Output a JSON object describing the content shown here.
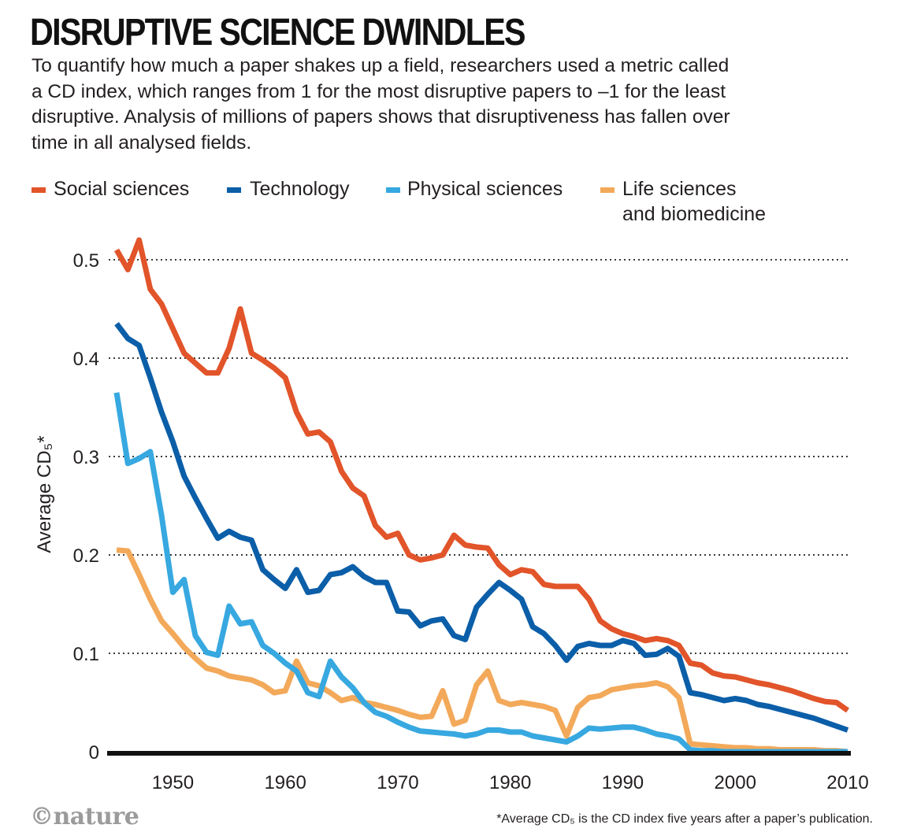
{
  "title": "DISRUPTIVE SCIENCE DWINDLES",
  "subtitle": "To quantify how much a paper shakes up a field, researchers used a metric called a CD index, which ranges from 1 for the most disruptive papers to –1 for the least disruptive. Analysis of millions of papers shows that disruptiveness has fallen over time in all analysed fields.",
  "logo_text": "©nature",
  "footnote": "*Average CD₅ is the CD index five years after a paper’s publication.",
  "chart_data": {
    "type": "line",
    "ylabel": "Average CD₅*",
    "xlabel": "",
    "xlim": [
      1944,
      2012
    ],
    "ylim": [
      0,
      0.5
    ],
    "xticks": [
      1950,
      1960,
      1970,
      1980,
      1990,
      2000,
      2010
    ],
    "yticks": [
      0,
      0.1,
      0.2,
      0.3,
      0.4,
      0.5
    ],
    "ytick_labels": [
      "0",
      "0.1",
      "0.2",
      "0.3",
      "0.4",
      "0.5"
    ],
    "grid": "horizontal dotted",
    "legend": "top",
    "x": [
      1945,
      1946,
      1947,
      1948,
      1949,
      1950,
      1951,
      1952,
      1953,
      1954,
      1955,
      1956,
      1957,
      1958,
      1959,
      1960,
      1961,
      1962,
      1963,
      1964,
      1965,
      1966,
      1967,
      1968,
      1969,
      1970,
      1971,
      1972,
      1973,
      1974,
      1975,
      1976,
      1977,
      1978,
      1979,
      1980,
      1981,
      1982,
      1983,
      1984,
      1985,
      1986,
      1987,
      1988,
      1989,
      1990,
      1991,
      1992,
      1993,
      1994,
      1995,
      1996,
      1997,
      1998,
      1999,
      2000,
      2001,
      2002,
      2003,
      2004,
      2005,
      2006,
      2007,
      2008,
      2009,
      2010
    ],
    "series": [
      {
        "name": "Social sciences",
        "color": "#e2542a",
        "values": [
          0.51,
          0.49,
          0.52,
          0.47,
          0.455,
          0.43,
          0.405,
          0.395,
          0.385,
          0.385,
          0.41,
          0.45,
          0.405,
          0.398,
          0.39,
          0.38,
          0.345,
          0.323,
          0.325,
          0.315,
          0.285,
          0.268,
          0.26,
          0.23,
          0.218,
          0.222,
          0.2,
          0.195,
          0.197,
          0.2,
          0.22,
          0.21,
          0.208,
          0.207,
          0.19,
          0.18,
          0.185,
          0.183,
          0.17,
          0.168,
          0.168,
          0.168,
          0.155,
          0.133,
          0.125,
          0.12,
          0.117,
          0.113,
          0.115,
          0.113,
          0.108,
          0.09,
          0.088,
          0.08,
          0.077,
          0.076,
          0.073,
          0.07,
          0.068,
          0.065,
          0.062,
          0.058,
          0.054,
          0.051,
          0.05,
          0.042
        ]
      },
      {
        "name": "Technology",
        "color": "#0b5ea8",
        "values": [
          0.435,
          0.42,
          0.413,
          0.38,
          0.345,
          0.315,
          0.28,
          0.258,
          0.237,
          0.217,
          0.224,
          0.218,
          0.215,
          0.185,
          0.175,
          0.166,
          0.185,
          0.162,
          0.164,
          0.18,
          0.182,
          0.188,
          0.178,
          0.172,
          0.172,
          0.143,
          0.142,
          0.128,
          0.133,
          0.135,
          0.118,
          0.114,
          0.147,
          0.16,
          0.172,
          0.164,
          0.155,
          0.127,
          0.12,
          0.108,
          0.093,
          0.107,
          0.11,
          0.108,
          0.108,
          0.113,
          0.11,
          0.098,
          0.099,
          0.105,
          0.097,
          0.06,
          0.058,
          0.055,
          0.052,
          0.054,
          0.052,
          0.048,
          0.046,
          0.043,
          0.04,
          0.037,
          0.034,
          0.03,
          0.026,
          0.022
        ]
      },
      {
        "name": "Physical sciences",
        "color": "#37a8e0",
        "values": [
          0.365,
          0.293,
          0.298,
          0.305,
          0.24,
          0.162,
          0.175,
          0.118,
          0.101,
          0.098,
          0.148,
          0.13,
          0.132,
          0.108,
          0.1,
          0.09,
          0.082,
          0.06,
          0.056,
          0.092,
          0.076,
          0.065,
          0.05,
          0.04,
          0.036,
          0.03,
          0.025,
          0.021,
          0.02,
          0.019,
          0.018,
          0.016,
          0.018,
          0.022,
          0.022,
          0.02,
          0.02,
          0.016,
          0.014,
          0.012,
          0.01,
          0.016,
          0.024,
          0.023,
          0.024,
          0.025,
          0.025,
          0.022,
          0.018,
          0.016,
          0.013,
          0.002,
          0.001,
          0.001,
          0.0,
          0.0,
          0.0,
          0.0,
          0.0,
          0.0,
          0.0,
          0.0,
          0.0,
          0.0,
          0.0,
          0.0
        ]
      },
      {
        "name": "Life sciences and biomedicine",
        "color": "#f3a95a",
        "values": [
          0.205,
          0.204,
          0.18,
          0.155,
          0.133,
          0.12,
          0.106,
          0.095,
          0.085,
          0.082,
          0.077,
          0.075,
          0.073,
          0.068,
          0.06,
          0.062,
          0.092,
          0.07,
          0.067,
          0.06,
          0.052,
          0.055,
          0.05,
          0.048,
          0.045,
          0.042,
          0.038,
          0.035,
          0.036,
          0.062,
          0.028,
          0.032,
          0.068,
          0.082,
          0.052,
          0.048,
          0.05,
          0.048,
          0.046,
          0.042,
          0.016,
          0.045,
          0.055,
          0.057,
          0.063,
          0.065,
          0.067,
          0.068,
          0.07,
          0.066,
          0.055,
          0.008,
          0.007,
          0.006,
          0.005,
          0.004,
          0.004,
          0.003,
          0.003,
          0.002,
          0.002,
          0.002,
          0.002,
          0.001,
          0.001,
          0.0
        ]
      }
    ]
  },
  "legend": [
    {
      "label": "Social sciences",
      "color": "#e2542a"
    },
    {
      "label": "Technology",
      "color": "#0b5ea8"
    },
    {
      "label": "Physical sciences",
      "color": "#37a8e0"
    },
    {
      "label_line1": "Life sciences",
      "label_line2": "and biomedicine",
      "color": "#f3a95a"
    }
  ]
}
